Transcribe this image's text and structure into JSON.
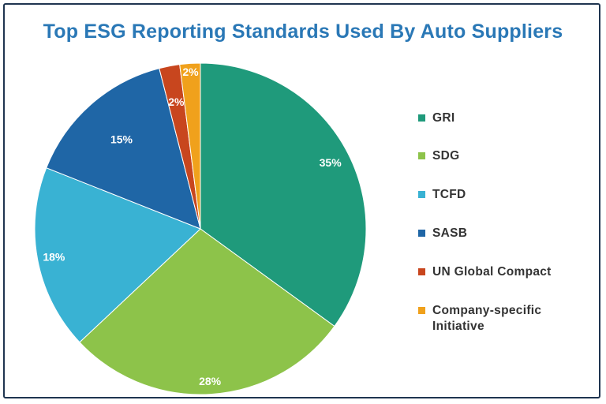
{
  "chart_data": {
    "type": "pie",
    "title": "Top ESG Reporting Standards Used By Auto Suppliers",
    "legend_position": "right",
    "slices": [
      {
        "label": "GRI",
        "value": 35,
        "data_label": "35%",
        "color": "#1f9a7b"
      },
      {
        "label": "SDG",
        "value": 28,
        "data_label": "28%",
        "color": "#8dc34a"
      },
      {
        "label": "TCFD",
        "value": 18,
        "data_label": "18%",
        "color": "#39b2d3"
      },
      {
        "label": "SASB",
        "value": 15,
        "data_label": "15%",
        "color": "#1f66a6"
      },
      {
        "label": "UN Global Compact",
        "value": 2,
        "data_label": "2%",
        "color": "#c8461e"
      },
      {
        "label": "Company-specific Initiative",
        "value": 2,
        "data_label": "2%",
        "color": "#f0a11c"
      }
    ]
  }
}
